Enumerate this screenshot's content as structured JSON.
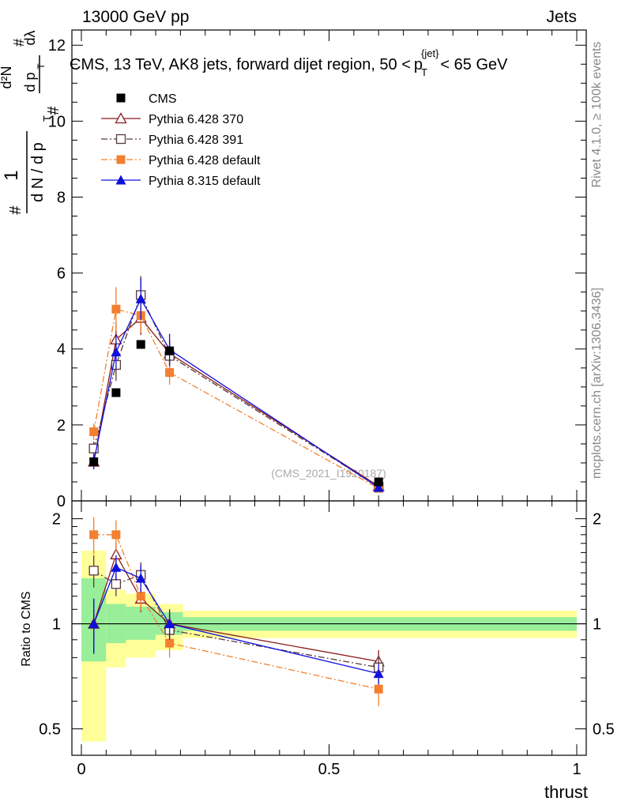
{
  "header": {
    "left": "13000 GeV pp",
    "right": "Jets"
  },
  "side_labels": {
    "rivet": "Rivet 4.1.0, ≥ 100k events",
    "mcplots": "mcplots.cern.ch [arXiv:1306.3436]"
  },
  "chart_data": [
    {
      "type": "line",
      "panel": "main",
      "title_pre": "CMS, 13 TeV, AK8 jets, forward dijet region, 50 <",
      "title_p": "p",
      "title_sup": "{jet}",
      "title_sub": "T",
      "title_post": "< 65 GeV",
      "ylabel": "1/N dN/dp_T d²N/(dp_T dλ)",
      "ylabel_parts": {
        "hash": "#",
        "one": "1",
        "dN": "d N / d p",
        "T": "T",
        "d2N": "d²N",
        "dp": "d p",
        "dlambda": "dλ"
      },
      "xlim": [
        0,
        1
      ],
      "ylim": [
        0,
        12.4
      ],
      "yticks": [
        0,
        2,
        4,
        6,
        8,
        10,
        12
      ],
      "ytick_labels": [
        "0",
        "2",
        "4",
        "6",
        "8",
        "10",
        "12"
      ],
      "watermark": "(CMS_2021_I1920187)",
      "x": [
        0.025,
        0.07,
        0.12,
        0.178,
        0.6
      ],
      "data": {
        "name": "CMS",
        "color": "#000000",
        "marker": "square-filled",
        "values": [
          1.03,
          2.85,
          4.12,
          3.95,
          0.5
        ]
      },
      "series": [
        {
          "name": "Pythia 6.428 370",
          "color": "#8b1a1a",
          "marker": "triangle-open",
          "dash": "solid",
          "values": [
            1.03,
            4.25,
            4.82,
            3.88,
            0.39
          ],
          "errors": [
            0.12,
            0.45,
            0.45,
            0.35,
            0.05
          ]
        },
        {
          "name": "Pythia 6.428 391",
          "color": "#5a3a3a",
          "marker": "square-open",
          "dash": "dashdot",
          "values": [
            1.38,
            3.58,
            5.42,
            3.82,
            0.37
          ],
          "errors": [
            0.18,
            0.42,
            0.5,
            0.4,
            0.05
          ]
        },
        {
          "name": "Pythia 6.428 default",
          "color": "#f28030",
          "marker": "square-filled",
          "dash": "dashdot",
          "values": [
            1.82,
            5.05,
            4.88,
            3.38,
            0.33
          ],
          "errors": [
            0.22,
            0.58,
            0.45,
            0.32,
            0.05
          ]
        },
        {
          "name": "Pythia 8.315 default",
          "color": "#1010dd",
          "marker": "triangle-filled",
          "dash": "solid",
          "values": [
            1.03,
            3.92,
            5.32,
            3.98,
            0.35
          ],
          "errors": [
            0.2,
            0.45,
            0.55,
            0.42,
            0.05
          ]
        }
      ]
    },
    {
      "type": "line",
      "panel": "ratio",
      "ylabel": "Ratio to CMS",
      "xlabel": "thrust",
      "xlim": [
        0,
        1
      ],
      "ylim": [
        0.42,
        2.25
      ],
      "xticks": [
        0,
        0.5,
        1
      ],
      "xtick_labels": [
        "0",
        "0.5",
        "1"
      ],
      "yticks": [
        0.5,
        1,
        2
      ],
      "ytick_labels": [
        "0.5",
        "1",
        "2"
      ],
      "bands": [
        {
          "x0": 0.0,
          "x1": 0.05,
          "yellow": [
            0.46,
            1.62
          ],
          "green": [
            0.78,
            1.35
          ]
        },
        {
          "x0": 0.05,
          "x1": 0.09,
          "yellow": [
            0.75,
            1.25
          ],
          "green": [
            0.88,
            1.14
          ]
        },
        {
          "x0": 0.09,
          "x1": 0.15,
          "yellow": [
            0.8,
            1.22
          ],
          "green": [
            0.9,
            1.12
          ]
        },
        {
          "x0": 0.15,
          "x1": 0.205,
          "yellow": [
            0.84,
            1.14
          ],
          "green": [
            0.93,
            1.08
          ]
        },
        {
          "x0": 0.205,
          "x1": 1.0,
          "yellow": [
            0.91,
            1.09
          ],
          "green": [
            0.955,
            1.045
          ]
        }
      ],
      "series": [
        {
          "name": "Pythia 6.428 370",
          "values": [
            1.0,
            1.58,
            1.18,
            1.0,
            0.78
          ],
          "errors": [
            0.1,
            0.12,
            0.1,
            0.08,
            0.06
          ]
        },
        {
          "name": "Pythia 6.428 391",
          "values": [
            1.42,
            1.3,
            1.38,
            0.96,
            0.75
          ],
          "errors": [
            0.15,
            0.1,
            0.12,
            0.09,
            0.06
          ]
        },
        {
          "name": "Pythia 6.428 default",
          "values": [
            1.8,
            1.8,
            1.2,
            0.88,
            0.65
          ],
          "errors": [
            0.22,
            0.18,
            0.11,
            0.08,
            0.07
          ]
        },
        {
          "name": "Pythia 8.315 default",
          "values": [
            1.0,
            1.45,
            1.35,
            1.0,
            0.72
          ],
          "errors": [
            0.18,
            0.12,
            0.12,
            0.1,
            0.05
          ]
        }
      ]
    }
  ]
}
